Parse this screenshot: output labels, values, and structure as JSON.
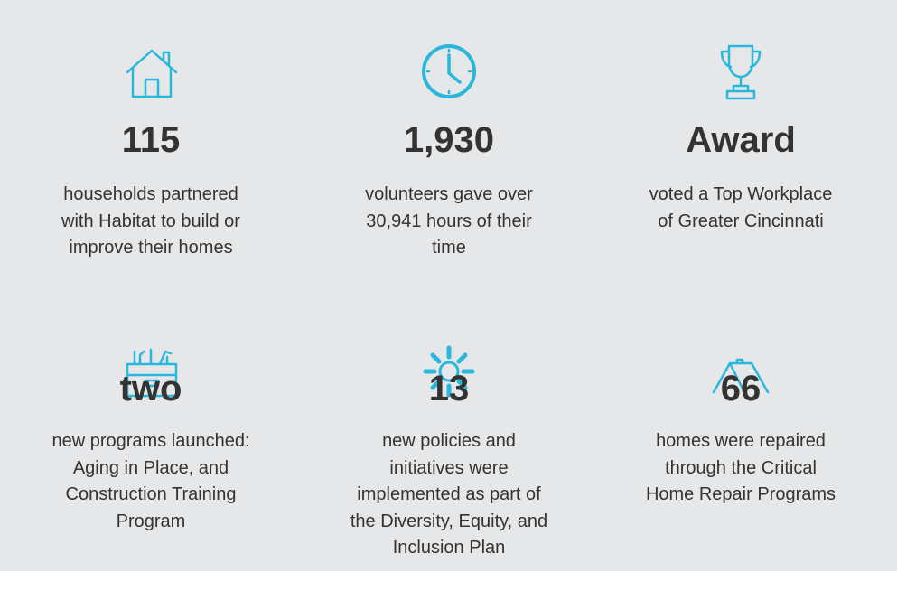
{
  "items": [
    {
      "headline": "115",
      "lines": [
        "households partnered",
        "with Habitat to build or",
        "improve their homes"
      ]
    },
    {
      "headline": "1,930",
      "lines": [
        "volunteers gave over",
        "30,941 hours of their",
        "time"
      ]
    },
    {
      "headline": "Award",
      "lines": [
        "voted a Top Workplace",
        "of Greater Cincinnati"
      ]
    },
    {
      "headline": "two",
      "lines": [
        "new programs launched:",
        "Aging in Place, and",
        "Construction Training",
        "Program"
      ]
    },
    {
      "headline": "13",
      "lines": [
        "new policies and",
        "initiatives were",
        "implemented as part of",
        "the Diversity, Equity, and",
        "Inclusion Plan"
      ]
    },
    {
      "headline": "66",
      "lines": [
        "homes were repaired",
        "through the Critical",
        "Home Repair Programs"
      ]
    }
  ]
}
